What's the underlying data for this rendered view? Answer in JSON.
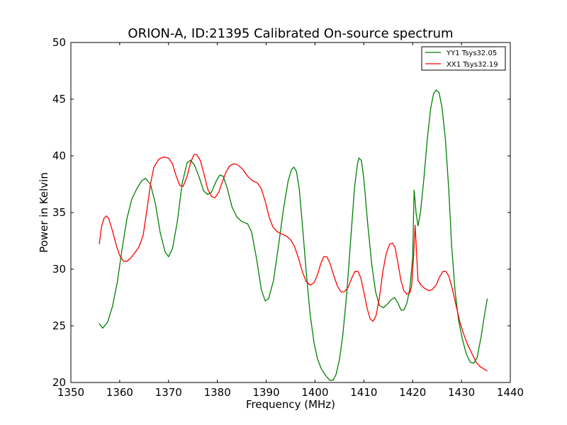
{
  "chart_data": {
    "type": "line",
    "title": "ORION-A, ID:21395 Calibrated On-source spectrum",
    "xlabel": "Frequency (MHz)",
    "ylabel": "Power in Kelvin",
    "xlim": [
      1350,
      1440
    ],
    "ylim": [
      20,
      50
    ],
    "xticks": [
      1350,
      1360,
      1370,
      1380,
      1390,
      1400,
      1410,
      1420,
      1430,
      1440
    ],
    "yticks": [
      20,
      25,
      30,
      35,
      40,
      45,
      50
    ],
    "grid": false,
    "legend_position": "top-right",
    "series": [
      {
        "name": "YY1 Tsys32.05",
        "color": "#008000",
        "points": [
          [
            1355.8,
            25.2
          ],
          [
            1356.5,
            24.8
          ],
          [
            1357.5,
            25.3
          ],
          [
            1358.5,
            26.7
          ],
          [
            1359.5,
            28.8
          ],
          [
            1360.5,
            31.8
          ],
          [
            1361.5,
            34.5
          ],
          [
            1362.5,
            36.2
          ],
          [
            1363.5,
            37.1
          ],
          [
            1364.5,
            37.8
          ],
          [
            1365.3,
            38.0
          ],
          [
            1366.3,
            37.5
          ],
          [
            1367.3,
            35.8
          ],
          [
            1368.3,
            33.2
          ],
          [
            1369.3,
            31.5
          ],
          [
            1370.0,
            31.1
          ],
          [
            1370.8,
            31.8
          ],
          [
            1371.8,
            34.2
          ],
          [
            1372.8,
            37.6
          ],
          [
            1373.8,
            39.4
          ],
          [
            1374.5,
            39.6
          ],
          [
            1375.3,
            39.2
          ],
          [
            1376.2,
            38.2
          ],
          [
            1377.2,
            36.9
          ],
          [
            1378.0,
            36.6
          ],
          [
            1378.8,
            36.8
          ],
          [
            1379.8,
            37.8
          ],
          [
            1380.5,
            38.3
          ],
          [
            1381.2,
            38.2
          ],
          [
            1382.0,
            37.2
          ],
          [
            1383.0,
            35.5
          ],
          [
            1384.0,
            34.6
          ],
          [
            1385.0,
            34.2
          ],
          [
            1386.2,
            34.0
          ],
          [
            1387.0,
            33.3
          ],
          [
            1388.0,
            31.0
          ],
          [
            1389.0,
            28.2
          ],
          [
            1389.8,
            27.2
          ],
          [
            1390.5,
            27.4
          ],
          [
            1391.5,
            29.0
          ],
          [
            1392.5,
            32.0
          ],
          [
            1393.5,
            35.2
          ],
          [
            1394.5,
            37.8
          ],
          [
            1395.2,
            38.8
          ],
          [
            1395.7,
            39.0
          ],
          [
            1396.2,
            38.6
          ],
          [
            1396.8,
            37.0
          ],
          [
            1397.5,
            33.5
          ],
          [
            1398.2,
            29.8
          ],
          [
            1399.0,
            26.0
          ],
          [
            1399.8,
            23.5
          ],
          [
            1400.5,
            22.1
          ],
          [
            1401.3,
            21.2
          ],
          [
            1402.2,
            20.6
          ],
          [
            1403.0,
            20.2
          ],
          [
            1403.7,
            20.2
          ],
          [
            1404.3,
            20.7
          ],
          [
            1405.0,
            22.0
          ],
          [
            1405.7,
            24.2
          ],
          [
            1406.5,
            27.8
          ],
          [
            1407.3,
            32.5
          ],
          [
            1408.1,
            37.2
          ],
          [
            1408.7,
            39.3
          ],
          [
            1409.0,
            39.8
          ],
          [
            1409.5,
            39.6
          ],
          [
            1410.0,
            38.0
          ],
          [
            1410.8,
            34.0
          ],
          [
            1411.6,
            30.5
          ],
          [
            1412.4,
            28.0
          ],
          [
            1413.2,
            26.8
          ],
          [
            1414.0,
            26.6
          ],
          [
            1414.8,
            26.9
          ],
          [
            1415.6,
            27.3
          ],
          [
            1416.3,
            27.5
          ],
          [
            1417.0,
            27.0
          ],
          [
            1417.6,
            26.4
          ],
          [
            1418.2,
            26.4
          ],
          [
            1418.8,
            27.0
          ],
          [
            1419.4,
            28.2
          ],
          [
            1420.0,
            31.0
          ],
          [
            1420.3,
            37.0
          ],
          [
            1420.7,
            35.0
          ],
          [
            1421.1,
            33.8
          ],
          [
            1421.6,
            35.0
          ],
          [
            1422.3,
            38.0
          ],
          [
            1423.0,
            41.5
          ],
          [
            1423.7,
            44.2
          ],
          [
            1424.3,
            45.5
          ],
          [
            1424.8,
            45.8
          ],
          [
            1425.4,
            45.6
          ],
          [
            1426.0,
            44.3
          ],
          [
            1426.7,
            41.5
          ],
          [
            1427.4,
            37.0
          ],
          [
            1428.0,
            32.0
          ],
          [
            1428.7,
            28.0
          ],
          [
            1429.4,
            25.5
          ],
          [
            1430.2,
            23.8
          ],
          [
            1431.0,
            22.5
          ],
          [
            1431.8,
            21.8
          ],
          [
            1432.5,
            21.7
          ],
          [
            1433.2,
            22.2
          ],
          [
            1434.0,
            24.0
          ],
          [
            1434.8,
            26.2
          ],
          [
            1435.3,
            27.4
          ]
        ]
      },
      {
        "name": "XX1 Tsys32.19",
        "color": "#ff0000",
        "points": [
          [
            1355.8,
            32.2
          ],
          [
            1356.3,
            33.8
          ],
          [
            1356.8,
            34.5
          ],
          [
            1357.3,
            34.7
          ],
          [
            1357.8,
            34.4
          ],
          [
            1358.5,
            33.4
          ],
          [
            1359.3,
            32.1
          ],
          [
            1360.0,
            31.2
          ],
          [
            1360.8,
            30.7
          ],
          [
            1361.5,
            30.7
          ],
          [
            1362.3,
            31.0
          ],
          [
            1363.2,
            31.5
          ],
          [
            1364.0,
            32.0
          ],
          [
            1364.8,
            33.0
          ],
          [
            1365.5,
            35.0
          ],
          [
            1366.3,
            37.5
          ],
          [
            1367.0,
            39.0
          ],
          [
            1368.0,
            39.7
          ],
          [
            1369.0,
            39.9
          ],
          [
            1370.0,
            39.8
          ],
          [
            1370.8,
            39.3
          ],
          [
            1371.5,
            38.3
          ],
          [
            1372.3,
            37.4
          ],
          [
            1373.0,
            37.3
          ],
          [
            1373.8,
            38.2
          ],
          [
            1374.5,
            39.4
          ],
          [
            1375.2,
            40.1
          ],
          [
            1375.8,
            40.1
          ],
          [
            1376.5,
            39.6
          ],
          [
            1377.2,
            38.5
          ],
          [
            1378.0,
            37.1
          ],
          [
            1378.8,
            36.4
          ],
          [
            1379.5,
            36.3
          ],
          [
            1380.3,
            36.8
          ],
          [
            1381.0,
            37.7
          ],
          [
            1381.8,
            38.6
          ],
          [
            1382.5,
            39.1
          ],
          [
            1383.3,
            39.3
          ],
          [
            1384.2,
            39.2
          ],
          [
            1385.2,
            38.8
          ],
          [
            1386.2,
            38.2
          ],
          [
            1387.2,
            37.8
          ],
          [
            1388.2,
            37.6
          ],
          [
            1389.0,
            37.1
          ],
          [
            1389.8,
            36.0
          ],
          [
            1390.6,
            34.6
          ],
          [
            1391.4,
            33.7
          ],
          [
            1392.3,
            33.3
          ],
          [
            1393.2,
            33.1
          ],
          [
            1394.2,
            32.9
          ],
          [
            1395.0,
            32.6
          ],
          [
            1395.8,
            32.0
          ],
          [
            1396.6,
            31.0
          ],
          [
            1397.4,
            29.8
          ],
          [
            1398.2,
            28.9
          ],
          [
            1399.0,
            28.6
          ],
          [
            1399.8,
            28.8
          ],
          [
            1400.5,
            29.5
          ],
          [
            1401.2,
            30.5
          ],
          [
            1401.8,
            31.1
          ],
          [
            1402.4,
            31.1
          ],
          [
            1403.0,
            30.6
          ],
          [
            1403.8,
            29.5
          ],
          [
            1404.6,
            28.5
          ],
          [
            1405.3,
            28.0
          ],
          [
            1406.0,
            28.0
          ],
          [
            1406.8,
            28.4
          ],
          [
            1407.5,
            29.2
          ],
          [
            1408.2,
            29.8
          ],
          [
            1408.8,
            29.8
          ],
          [
            1409.4,
            29.2
          ],
          [
            1410.0,
            28.0
          ],
          [
            1410.7,
            26.5
          ],
          [
            1411.3,
            25.6
          ],
          [
            1411.9,
            25.4
          ],
          [
            1412.5,
            25.9
          ],
          [
            1413.2,
            27.5
          ],
          [
            1413.9,
            29.8
          ],
          [
            1414.6,
            31.4
          ],
          [
            1415.3,
            32.2
          ],
          [
            1415.9,
            32.3
          ],
          [
            1416.4,
            31.9
          ],
          [
            1417.0,
            30.5
          ],
          [
            1417.6,
            29.0
          ],
          [
            1418.2,
            28.1
          ],
          [
            1418.8,
            27.8
          ],
          [
            1419.4,
            27.9
          ],
          [
            1419.8,
            28.5
          ],
          [
            1420.2,
            31.2
          ],
          [
            1420.5,
            33.9
          ],
          [
            1420.8,
            31.5
          ],
          [
            1421.1,
            29.0
          ],
          [
            1421.7,
            28.6
          ],
          [
            1422.5,
            28.3
          ],
          [
            1423.3,
            28.1
          ],
          [
            1424.0,
            28.2
          ],
          [
            1424.8,
            28.6
          ],
          [
            1425.5,
            29.3
          ],
          [
            1426.2,
            29.8
          ],
          [
            1426.8,
            29.8
          ],
          [
            1427.4,
            29.4
          ],
          [
            1428.1,
            28.3
          ],
          [
            1428.9,
            26.8
          ],
          [
            1429.7,
            25.3
          ],
          [
            1430.5,
            24.2
          ],
          [
            1431.3,
            23.3
          ],
          [
            1432.2,
            22.5
          ],
          [
            1433.0,
            21.8
          ],
          [
            1433.8,
            21.4
          ],
          [
            1434.6,
            21.2
          ],
          [
            1435.3,
            21.0
          ]
        ]
      }
    ]
  }
}
